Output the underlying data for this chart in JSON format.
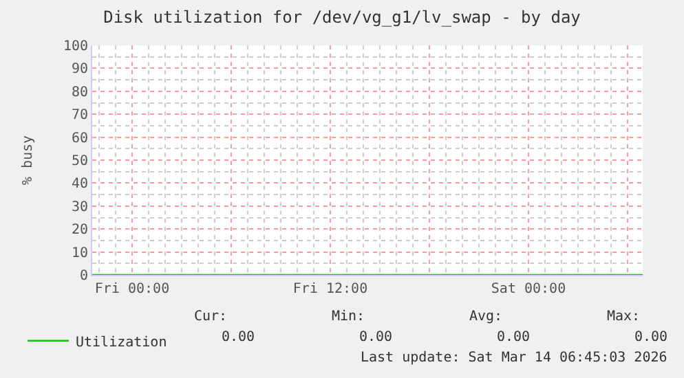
{
  "chart_data": {
    "type": "line",
    "title": "Disk utilization for /dev/vg_g1/lv_swap - by day",
    "ylabel": "% busy",
    "xlim": [
      "2026-03-12T21:35",
      "2026-03-14T06:55"
    ],
    "xticks": [
      {
        "value": "2026-03-13T00:00",
        "label": "Fri 00:00"
      },
      {
        "value": "2026-03-13T06:00",
        "label": null
      },
      {
        "value": "2026-03-13T12:00",
        "label": "Fri 12:00"
      },
      {
        "value": "2026-03-13T18:00",
        "label": null
      },
      {
        "value": "2026-03-14T00:00",
        "label": "Sat 00:00"
      },
      {
        "value": "2026-03-14T06:00",
        "label": null
      }
    ],
    "ylim": [
      0,
      100
    ],
    "yticks": [
      0,
      10,
      20,
      30,
      40,
      50,
      60,
      70,
      80,
      90,
      100
    ],
    "grid": true,
    "legend": "bottom left",
    "series": [
      {
        "name": "Utilization",
        "color": "#00cc00",
        "x": [
          "2026-03-12T21:35",
          "2026-03-14T06:55"
        ],
        "values": [
          0,
          0
        ]
      }
    ],
    "annotations": [
      "Cur:",
      "Min:",
      "Avg:",
      "Max:",
      "0.00",
      "0.00",
      "0.00",
      "0.00",
      "Last update: Sat Mar 14 06:45:03 2026"
    ]
  }
}
